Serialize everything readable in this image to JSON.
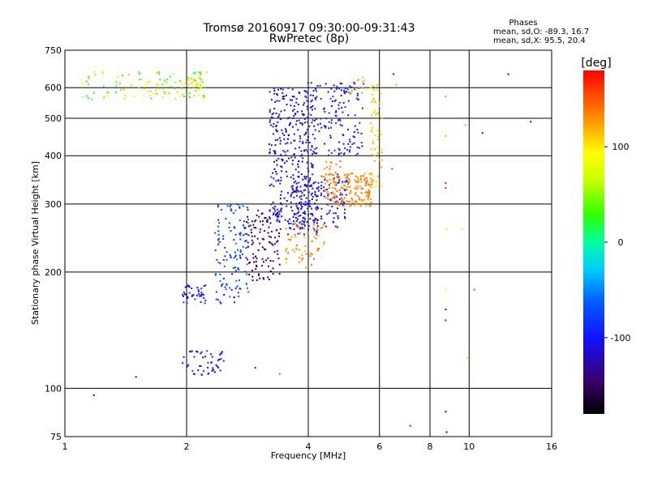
{
  "chart_data": {
    "type": "scatter",
    "title": "Tromsø 20160917 09:30:00-09:31:43",
    "subtitle": "RwPretec (8p)",
    "xlabel": "Frequency [MHz]",
    "ylabel": "Stationary phase Virtual Height [km]",
    "x_scale": "log",
    "y_scale": "log",
    "xlim": [
      1,
      16
    ],
    "ylim": [
      75,
      750
    ],
    "x_ticks": [
      1,
      2,
      4,
      6,
      8,
      10,
      16
    ],
    "x_tick_labels": [
      "1",
      "2",
      "4",
      "6",
      "8",
      "10",
      "16"
    ],
    "y_ticks": [
      75,
      100,
      200,
      300,
      400,
      500,
      600,
      750
    ],
    "y_tick_labels": [
      "75",
      "100",
      "200",
      "300",
      "400",
      "500",
      "600",
      "750"
    ],
    "grid": true,
    "phase_info": {
      "title": "Phases",
      "o_line": "mean, sd,O: -89.3, 16.7",
      "x_line": "mean, sd,X:  95.5, 20.4"
    },
    "colorbar": {
      "label": "[deg]",
      "range": [
        -180,
        180
      ],
      "ticks": [
        100,
        0,
        -100
      ],
      "tick_labels": [
        "100",
        "0",
        "-100"
      ],
      "colormap": "rainbow"
    },
    "clusters": [
      {
        "x": [
          1.1,
          2.25
        ],
        "y": [
          560,
          660
        ],
        "phase": [
          0,
          120
        ],
        "n": 110
      },
      {
        "x": [
          1.85,
          2.2
        ],
        "y": [
          590,
          640
        ],
        "phase": [
          40,
          110
        ],
        "n": 25
      },
      {
        "x": [
          1.95,
          2.25
        ],
        "y": [
          165,
          185
        ],
        "phase": [
          -115,
          -80
        ],
        "n": 40
      },
      {
        "x": [
          1.95,
          2.5
        ],
        "y": [
          108,
          125
        ],
        "phase": [
          -120,
          -85
        ],
        "n": 50
      },
      {
        "x": [
          2.35,
          2.85
        ],
        "y": [
          165,
          300
        ],
        "phase": [
          -100,
          -50
        ],
        "n": 130
      },
      {
        "x": [
          2.8,
          3.4
        ],
        "y": [
          190,
          290
        ],
        "phase": [
          -160,
          -130
        ],
        "n": 110
      },
      {
        "x": [
          3.2,
          4.2
        ],
        "y": [
          250,
          600
        ],
        "phase": [
          -125,
          -95
        ],
        "n": 360
      },
      {
        "x": [
          3.6,
          5.0
        ],
        "y": [
          260,
          360
        ],
        "phase": [
          -115,
          -95
        ],
        "n": 150
      },
      {
        "x": [
          3.9,
          5.5
        ],
        "y": [
          400,
          620
        ],
        "phase": [
          -110,
          -80
        ],
        "n": 150
      },
      {
        "x": [
          3.5,
          4.4
        ],
        "y": [
          205,
          270
        ],
        "phase": [
          110,
          150
        ],
        "n": 60
      },
      {
        "x": [
          4.4,
          5.8
        ],
        "y": [
          295,
          360
        ],
        "phase": [
          115,
          150
        ],
        "n": 180
      },
      {
        "x": [
          5.7,
          6.1
        ],
        "y": [
          330,
          610
        ],
        "phase": [
          95,
          125
        ],
        "n": 60
      },
      {
        "x": [
          5.0,
          5.6
        ],
        "y": [
          580,
          640
        ],
        "phase": [
          100,
          150
        ],
        "n": 12
      },
      {
        "x": [
          4.3,
          4.8
        ],
        "y": [
          350,
          400
        ],
        "phase": [
          130,
          150
        ],
        "n": 15
      }
    ],
    "points": [
      {
        "x": 1.18,
        "y": 96,
        "phase": -140
      },
      {
        "x": 1.5,
        "y": 107,
        "phase": -120
      },
      {
        "x": 2.96,
        "y": 113,
        "phase": -110
      },
      {
        "x": 3.4,
        "y": 109,
        "phase": 150
      },
      {
        "x": 6.5,
        "y": 650,
        "phase": -110
      },
      {
        "x": 6.6,
        "y": 610,
        "phase": 20
      },
      {
        "x": 6.45,
        "y": 370,
        "phase": -50
      },
      {
        "x": 7.15,
        "y": 80,
        "phase": -80
      },
      {
        "x": 8.75,
        "y": 570,
        "phase": 30
      },
      {
        "x": 8.75,
        "y": 450,
        "phase": 120
      },
      {
        "x": 8.75,
        "y": 340,
        "phase": 175
      },
      {
        "x": 8.75,
        "y": 330,
        "phase": 170
      },
      {
        "x": 8.8,
        "y": 258,
        "phase": 100
      },
      {
        "x": 8.75,
        "y": 180,
        "phase": 80
      },
      {
        "x": 8.75,
        "y": 160,
        "phase": -110
      },
      {
        "x": 8.75,
        "y": 150,
        "phase": -90
      },
      {
        "x": 8.75,
        "y": 87,
        "phase": -130
      },
      {
        "x": 8.8,
        "y": 77,
        "phase": -120
      },
      {
        "x": 9.6,
        "y": 258,
        "phase": 80
      },
      {
        "x": 9.8,
        "y": 480,
        "phase": 40
      },
      {
        "x": 9.9,
        "y": 120,
        "phase": 70
      },
      {
        "x": 10.3,
        "y": 180,
        "phase": 160
      },
      {
        "x": 10.8,
        "y": 458,
        "phase": -120
      },
      {
        "x": 12.5,
        "y": 650,
        "phase": -110
      },
      {
        "x": 14.2,
        "y": 490,
        "phase": -130
      }
    ]
  }
}
